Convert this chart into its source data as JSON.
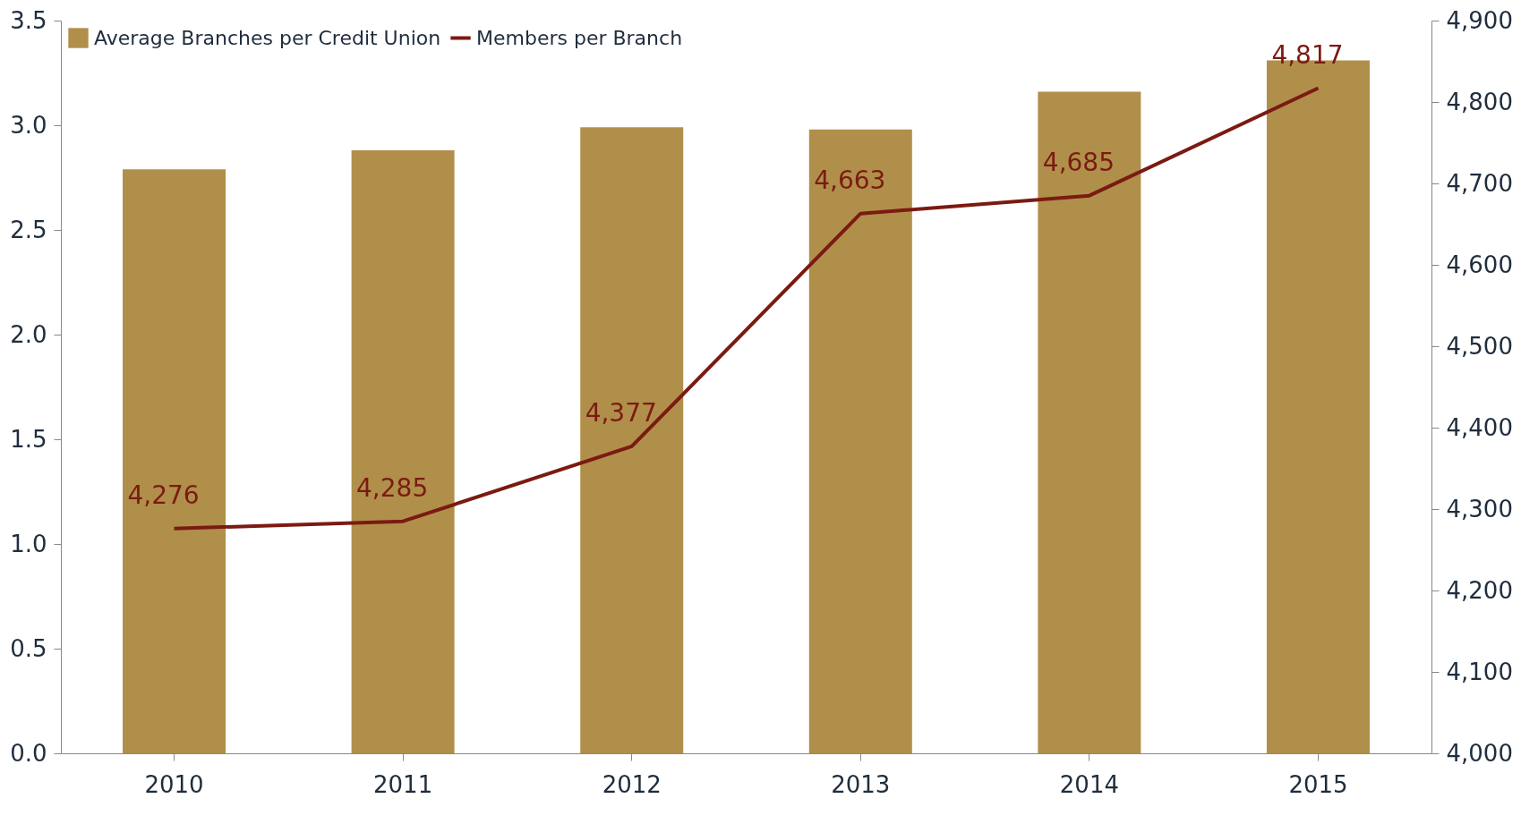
{
  "chart_data": {
    "type": "bar",
    "categories": [
      "2010",
      "2011",
      "2012",
      "2013",
      "2014",
      "2015"
    ],
    "series": [
      {
        "name": "Average Branches per Credit Union",
        "color": "#b08f4a",
        "values": [
          2.79,
          2.88,
          2.99,
          2.98,
          3.16,
          3.31
        ]
      },
      {
        "name": "Members per Branch",
        "type": "line",
        "axis": "y2",
        "color": "#7b1a12",
        "values": [
          4276,
          4285,
          4377,
          4663,
          4685,
          4817
        ],
        "value_labels": [
          "4,276",
          "4,285",
          "4,377",
          "4,663",
          "4,685",
          "4,817"
        ]
      }
    ],
    "ylim": [
      0,
      3.5
    ],
    "yticks": [
      {
        "value": 0,
        "label": "0.0"
      },
      {
        "value": 0.5,
        "label": "0.5"
      },
      {
        "value": 1,
        "label": "1.0"
      },
      {
        "value": 1.5,
        "label": "1.5"
      },
      {
        "value": 2,
        "label": "2.0"
      },
      {
        "value": 2.5,
        "label": "2.5"
      },
      {
        "value": 3,
        "label": "3.0"
      },
      {
        "value": 3.5,
        "label": "3.5"
      }
    ],
    "y2lim": [
      4000,
      4900
    ],
    "y2ticks": [
      {
        "value": 4000,
        "label": "4,000"
      },
      {
        "value": 4100,
        "label": "4,100"
      },
      {
        "value": 4200,
        "label": "4,200"
      },
      {
        "value": 4300,
        "label": "4,300"
      },
      {
        "value": 4400,
        "label": "4,400"
      },
      {
        "value": 4500,
        "label": "4,500"
      },
      {
        "value": 4600,
        "label": "4,600"
      },
      {
        "value": 4700,
        "label": "4,700"
      },
      {
        "value": 4800,
        "label": "4,800"
      },
      {
        "value": 4900,
        "label": "4,900"
      }
    ],
    "grid": false,
    "legend": "top left"
  }
}
